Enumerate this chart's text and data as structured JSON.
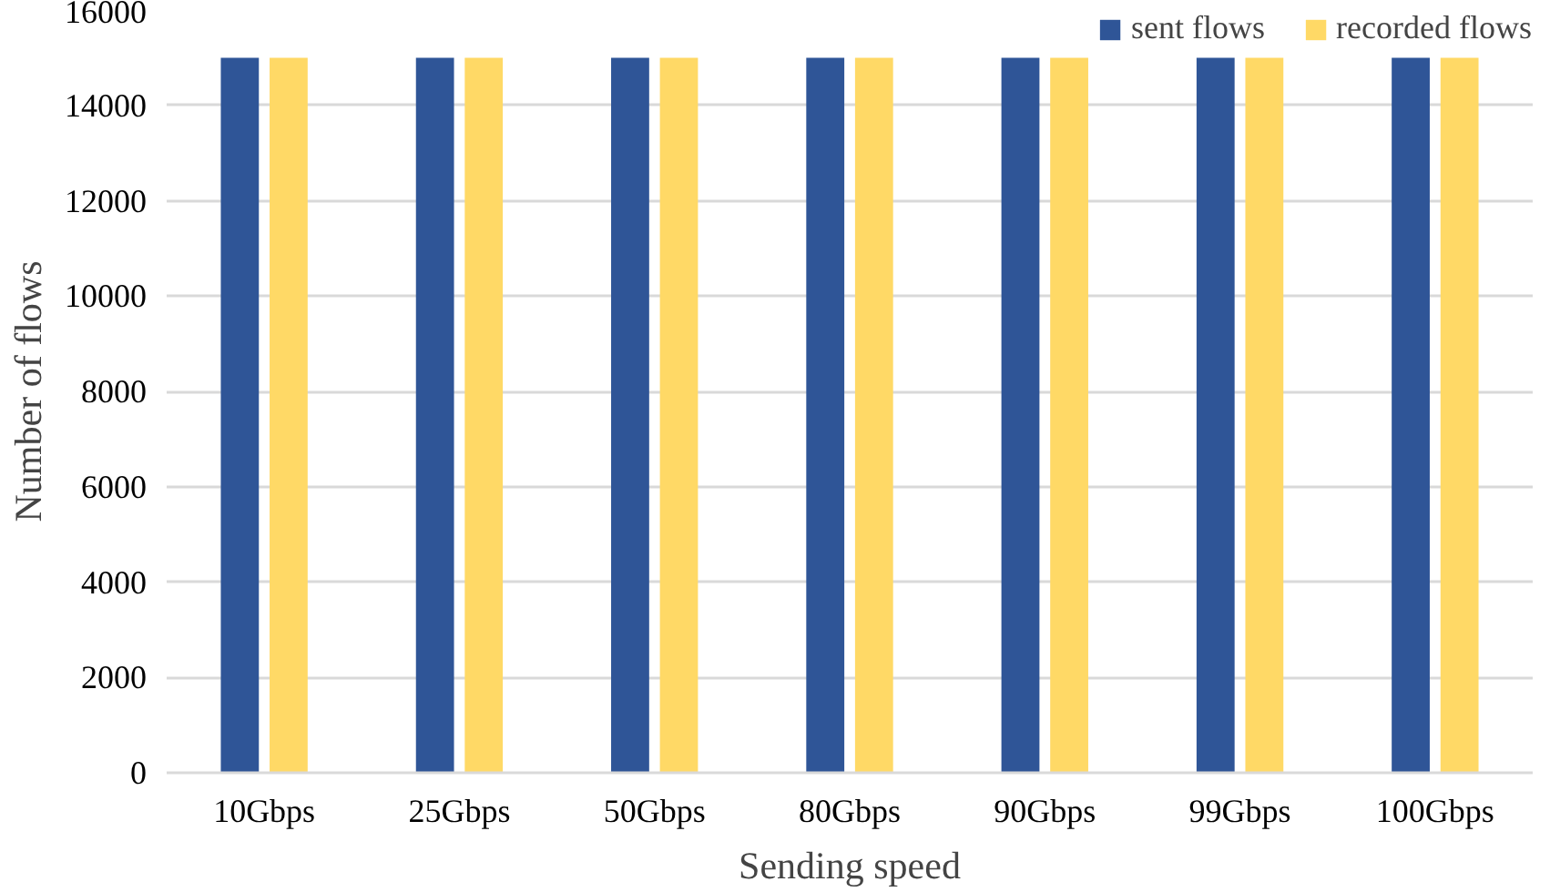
{
  "chart_data": {
    "type": "bar",
    "xlabel": "Sending speed",
    "ylabel": "Number of flows",
    "categories": [
      "10Gbps",
      "25Gbps",
      "50Gbps",
      "80Gbps",
      "90Gbps",
      "99Gbps",
      "100Gbps"
    ],
    "series": [
      {
        "name": "sent flows",
        "color": "#2f5597",
        "values": [
          15000,
          15000,
          15000,
          15000,
          15000,
          15000,
          15000
        ]
      },
      {
        "name": "recorded flows",
        "color": "#ffd966",
        "values": [
          15000,
          15000,
          15000,
          15000,
          15000,
          15000,
          15000
        ]
      }
    ],
    "ylim": [
      0,
      16000
    ],
    "yticks": [
      0,
      2000,
      4000,
      6000,
      8000,
      10000,
      12000,
      14000,
      16000
    ],
    "grid": "y",
    "legend": "top right"
  }
}
